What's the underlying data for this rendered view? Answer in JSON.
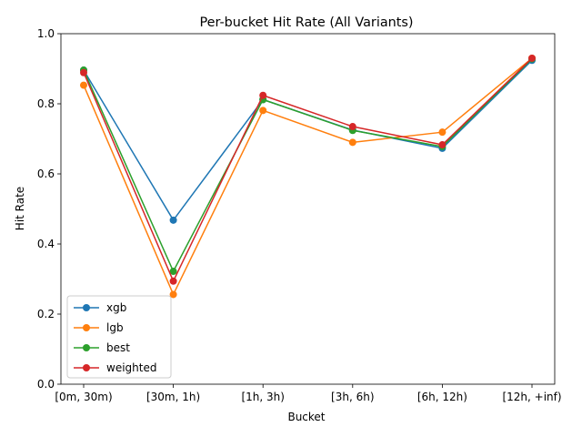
{
  "chart_data": {
    "type": "line",
    "title": "Per-bucket Hit Rate (All Variants)",
    "xlabel": "Bucket",
    "ylabel": "Hit Rate",
    "categories": [
      "[0m, 30m)",
      "[30m, 1h)",
      "[1h, 3h)",
      "[3h, 6h)",
      "[6h, 12h)",
      "[12h, +inf)"
    ],
    "ylim": [
      0.0,
      1.0
    ],
    "yticks": [
      "0.0",
      "0.2",
      "0.4",
      "0.6",
      "0.8",
      "1.0"
    ],
    "grid": false,
    "legend_position": "lower-left",
    "series": [
      {
        "name": "xgb",
        "color": "#1f77b4",
        "values": [
          0.896,
          0.468,
          0.812,
          0.725,
          0.673,
          0.924
        ]
      },
      {
        "name": "lgb",
        "color": "#ff7f0e",
        "values": [
          0.853,
          0.256,
          0.781,
          0.69,
          0.719,
          0.93
        ]
      },
      {
        "name": "best",
        "color": "#2ca02c",
        "values": [
          0.896,
          0.322,
          0.812,
          0.724,
          0.678,
          0.928
        ]
      },
      {
        "name": "weighted",
        "color": "#d62728",
        "values": [
          0.889,
          0.294,
          0.824,
          0.735,
          0.683,
          0.93
        ]
      }
    ]
  }
}
